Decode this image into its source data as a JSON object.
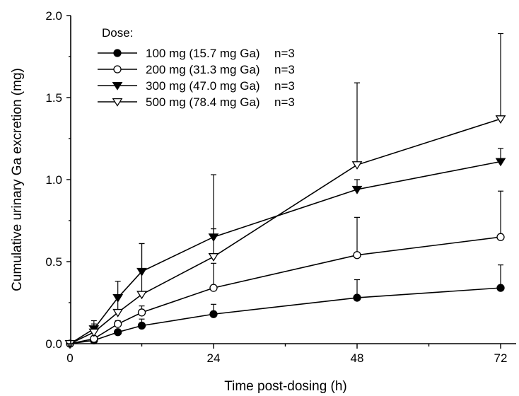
{
  "chart_data": {
    "type": "line",
    "xlabel": "Time post-dosing (h)",
    "ylabel": "Cumulative urinary Ga excretion (mg)",
    "xlim": [
      0,
      76
    ],
    "ylim": [
      0,
      2.0
    ],
    "x_ticks": [
      0,
      24,
      48,
      72
    ],
    "y_ticks": [
      0.0,
      0.5,
      1.0,
      1.5,
      2.0
    ],
    "x_tick_labels": [
      "0",
      "24",
      "48",
      "72"
    ],
    "y_tick_labels": [
      "0.0",
      "0.5",
      "1.0",
      "1.5",
      "2.0"
    ],
    "legend_title": "Dose:",
    "legend_position": "top-left",
    "x": [
      0,
      4,
      8,
      12,
      24,
      48,
      72
    ],
    "series": [
      {
        "name": "100 mg (15.7 mg Ga)",
        "n_label": "n=3",
        "marker": "circle-filled",
        "values": [
          0.0,
          0.02,
          0.07,
          0.11,
          0.18,
          0.28,
          0.34
        ],
        "err_plus": [
          0,
          0.01,
          0.01,
          0.04,
          0.06,
          0.11,
          0.14
        ]
      },
      {
        "name": "200 mg (31.3 mg Ga)",
        "n_label": "n=3",
        "marker": "circle-open",
        "values": [
          0.0,
          0.03,
          0.12,
          0.19,
          0.34,
          0.54,
          0.65
        ],
        "err_plus": [
          0,
          0.01,
          0.02,
          0.04,
          0.15,
          0.23,
          0.28
        ]
      },
      {
        "name": "300 mg (47.0 mg Ga)",
        "n_label": "n=3",
        "marker": "triangle-down-filled",
        "values": [
          0.0,
          0.09,
          0.28,
          0.44,
          0.65,
          0.94,
          1.11
        ],
        "err_plus": [
          0,
          0.03,
          0.1,
          0.17,
          0.05,
          0.06,
          0.08
        ]
      },
      {
        "name": "500 mg (78.4 mg Ga)",
        "n_label": "n=3",
        "marker": "triangle-down-open",
        "values": [
          0.0,
          0.07,
          0.19,
          0.3,
          0.53,
          1.09,
          1.37
        ],
        "err_plus": [
          0,
          0.07,
          0.1,
          0.31,
          0.5,
          0.5,
          0.52
        ]
      }
    ]
  }
}
